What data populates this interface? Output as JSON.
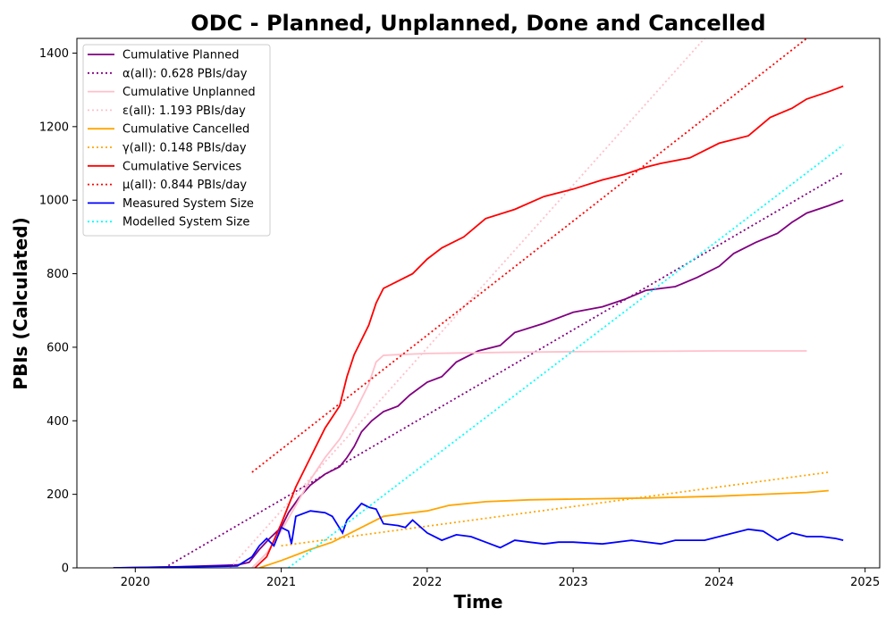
{
  "chart_data": {
    "type": "line",
    "title": "ODC - Planned, Unplanned, Done  and Cancelled",
    "xlabel": "Time",
    "ylabel": "PBIs (Calculated)",
    "xlim": [
      2019.6,
      2025.1
    ],
    "ylim": [
      0,
      1440
    ],
    "xticks": [
      2020,
      2021,
      2022,
      2023,
      2024,
      2025
    ],
    "yticks": [
      0,
      200,
      400,
      600,
      800,
      1000,
      1200,
      1400
    ],
    "grid": false,
    "legend_position": "upper-left",
    "series": [
      {
        "name": "Cumulative Planned",
        "color": "#800080",
        "style": "solid",
        "points": [
          [
            2019.85,
            0
          ],
          [
            2020.3,
            3
          ],
          [
            2020.7,
            8
          ],
          [
            2020.78,
            15
          ],
          [
            2020.85,
            50
          ],
          [
            2020.92,
            80
          ],
          [
            2021.0,
            110
          ],
          [
            2021.05,
            150
          ],
          [
            2021.12,
            190
          ],
          [
            2021.2,
            225
          ],
          [
            2021.3,
            255
          ],
          [
            2021.4,
            275
          ],
          [
            2021.45,
            300
          ],
          [
            2021.5,
            330
          ],
          [
            2021.55,
            370
          ],
          [
            2021.62,
            400
          ],
          [
            2021.7,
            425
          ],
          [
            2021.8,
            440
          ],
          [
            2021.88,
            470
          ],
          [
            2022.0,
            505
          ],
          [
            2022.1,
            520
          ],
          [
            2022.2,
            560
          ],
          [
            2022.35,
            590
          ],
          [
            2022.5,
            605
          ],
          [
            2022.6,
            640
          ],
          [
            2022.8,
            665
          ],
          [
            2023.0,
            695
          ],
          [
            2023.2,
            710
          ],
          [
            2023.35,
            730
          ],
          [
            2023.5,
            755
          ],
          [
            2023.7,
            765
          ],
          [
            2023.85,
            790
          ],
          [
            2024.0,
            820
          ],
          [
            2024.1,
            855
          ],
          [
            2024.25,
            885
          ],
          [
            2024.4,
            910
          ],
          [
            2024.5,
            940
          ],
          [
            2024.6,
            965
          ],
          [
            2024.75,
            985
          ],
          [
            2024.85,
            1000
          ]
        ]
      },
      {
        "name": "α(all): 0.628 PBIs/day",
        "color": "#800080",
        "style": "dotted",
        "points": [
          [
            2020.2,
            0
          ],
          [
            2024.85,
            1075
          ]
        ]
      },
      {
        "name": "Cumulative Unplanned",
        "color": "#ffc0cb",
        "style": "solid",
        "points": [
          [
            2020.8,
            0
          ],
          [
            2020.9,
            40
          ],
          [
            2021.0,
            100
          ],
          [
            2021.1,
            170
          ],
          [
            2021.2,
            240
          ],
          [
            2021.3,
            300
          ],
          [
            2021.4,
            350
          ],
          [
            2021.5,
            420
          ],
          [
            2021.6,
            500
          ],
          [
            2021.65,
            560
          ],
          [
            2021.7,
            578
          ],
          [
            2021.8,
            580
          ],
          [
            2022.0,
            583
          ],
          [
            2022.5,
            586
          ],
          [
            2023.0,
            588
          ],
          [
            2024.0,
            590
          ],
          [
            2024.6,
            590
          ]
        ]
      },
      {
        "name": "ε(all): 1.193 PBIs/day",
        "color": "#ffc0cb",
        "style": "dotted",
        "points": [
          [
            2020.65,
            0
          ],
          [
            2023.9,
            1440
          ]
        ]
      },
      {
        "name": "Cumulative Cancelled",
        "color": "#ffa500",
        "style": "solid",
        "points": [
          [
            2020.85,
            0
          ],
          [
            2021.0,
            20
          ],
          [
            2021.1,
            35
          ],
          [
            2021.2,
            50
          ],
          [
            2021.35,
            70
          ],
          [
            2021.45,
            90
          ],
          [
            2021.55,
            110
          ],
          [
            2021.7,
            140
          ],
          [
            2021.85,
            148
          ],
          [
            2022.0,
            155
          ],
          [
            2022.15,
            170
          ],
          [
            2022.4,
            180
          ],
          [
            2022.7,
            185
          ],
          [
            2023.0,
            187
          ],
          [
            2023.5,
            190
          ],
          [
            2024.0,
            195
          ],
          [
            2024.3,
            200
          ],
          [
            2024.6,
            205
          ],
          [
            2024.75,
            210
          ]
        ]
      },
      {
        "name": "γ(all): 0.148 PBIs/day",
        "color": "#ffa500",
        "style": "dotted",
        "points": [
          [
            2021.0,
            60
          ],
          [
            2024.75,
            260
          ]
        ]
      },
      {
        "name": "Cumulative Services",
        "color": "#ff0000",
        "style": "solid",
        "points": [
          [
            2020.82,
            0
          ],
          [
            2020.9,
            30
          ],
          [
            2021.0,
            120
          ],
          [
            2021.1,
            220
          ],
          [
            2021.2,
            300
          ],
          [
            2021.3,
            380
          ],
          [
            2021.4,
            440
          ],
          [
            2021.45,
            520
          ],
          [
            2021.5,
            580
          ],
          [
            2021.6,
            660
          ],
          [
            2021.65,
            720
          ],
          [
            2021.7,
            760
          ],
          [
            2021.8,
            780
          ],
          [
            2021.9,
            800
          ],
          [
            2022.0,
            840
          ],
          [
            2022.1,
            870
          ],
          [
            2022.25,
            900
          ],
          [
            2022.4,
            950
          ],
          [
            2022.6,
            975
          ],
          [
            2022.8,
            1010
          ],
          [
            2023.0,
            1030
          ],
          [
            2023.2,
            1055
          ],
          [
            2023.35,
            1070
          ],
          [
            2023.5,
            1090
          ],
          [
            2023.6,
            1100
          ],
          [
            2023.8,
            1115
          ],
          [
            2024.0,
            1155
          ],
          [
            2024.2,
            1175
          ],
          [
            2024.35,
            1225
          ],
          [
            2024.5,
            1250
          ],
          [
            2024.6,
            1275
          ],
          [
            2024.75,
            1295
          ],
          [
            2024.85,
            1310
          ]
        ]
      },
      {
        "name": "μ(all): 0.844 PBIs/day",
        "color": "#ff0000",
        "style": "dotted",
        "points": [
          [
            2020.8,
            260
          ],
          [
            2024.6,
            1440
          ]
        ]
      },
      {
        "name": "Measured System Size",
        "color": "#0000ff",
        "style": "solid",
        "points": [
          [
            2019.85,
            0
          ],
          [
            2020.7,
            5
          ],
          [
            2020.8,
            30
          ],
          [
            2020.85,
            60
          ],
          [
            2020.9,
            80
          ],
          [
            2020.95,
            60
          ],
          [
            2021.0,
            110
          ],
          [
            2021.05,
            100
          ],
          [
            2021.07,
            65
          ],
          [
            2021.1,
            140
          ],
          [
            2021.2,
            155
          ],
          [
            2021.3,
            150
          ],
          [
            2021.35,
            140
          ],
          [
            2021.42,
            95
          ],
          [
            2021.45,
            130
          ],
          [
            2021.55,
            175
          ],
          [
            2021.6,
            165
          ],
          [
            2021.65,
            160
          ],
          [
            2021.7,
            120
          ],
          [
            2021.8,
            115
          ],
          [
            2021.85,
            110
          ],
          [
            2021.9,
            130
          ],
          [
            2022.0,
            95
          ],
          [
            2022.1,
            75
          ],
          [
            2022.2,
            90
          ],
          [
            2022.3,
            85
          ],
          [
            2022.4,
            70
          ],
          [
            2022.5,
            55
          ],
          [
            2022.6,
            75
          ],
          [
            2022.7,
            70
          ],
          [
            2022.8,
            65
          ],
          [
            2022.9,
            70
          ],
          [
            2023.0,
            70
          ],
          [
            2023.2,
            65
          ],
          [
            2023.4,
            75
          ],
          [
            2023.6,
            65
          ],
          [
            2023.7,
            75
          ],
          [
            2023.9,
            75
          ],
          [
            2024.0,
            85
          ],
          [
            2024.1,
            95
          ],
          [
            2024.2,
            105
          ],
          [
            2024.3,
            100
          ],
          [
            2024.4,
            75
          ],
          [
            2024.5,
            95
          ],
          [
            2024.6,
            85
          ],
          [
            2024.7,
            85
          ],
          [
            2024.8,
            80
          ],
          [
            2024.85,
            75
          ]
        ]
      },
      {
        "name": "Modelled System Size",
        "color": "#00ffff",
        "style": "dotted",
        "points": [
          [
            2021.05,
            0
          ],
          [
            2024.85,
            1150
          ]
        ]
      }
    ]
  }
}
